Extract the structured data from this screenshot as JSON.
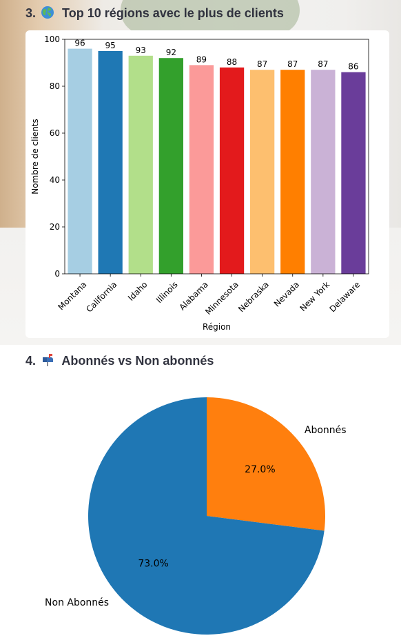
{
  "sections": {
    "bar_title_number": "3.",
    "bar_title_text": "Top 10 régions avec le plus de clients",
    "bar_title_icon": "globe-icon",
    "pie_title_number": "4.",
    "pie_title_text": "Abonnés vs Non abonnés",
    "pie_title_icon": "mailbox-icon"
  },
  "chart_data": [
    {
      "type": "bar",
      "title": "",
      "xlabel": "Région",
      "ylabel": "Nombre de clients",
      "ylim": [
        0,
        100
      ],
      "yticks": [
        "0",
        "20",
        "40",
        "60",
        "80",
        "100"
      ],
      "grid": false,
      "categories": [
        "Montana",
        "California",
        "Idaho",
        "Illinois",
        "Alabama",
        "Minnesota",
        "Nebraska",
        "Nevada",
        "New York",
        "Delaware"
      ],
      "values": [
        96,
        95,
        93,
        92,
        89,
        88,
        87,
        87,
        87,
        86
      ],
      "data_labels": [
        "96",
        "95",
        "93",
        "92",
        "89",
        "88",
        "87",
        "87",
        "87",
        "86"
      ],
      "colors": [
        "#a6cee3",
        "#1f78b4",
        "#b2df8a",
        "#33a02c",
        "#fb9a99",
        "#e31a1c",
        "#fdbf6f",
        "#ff7f00",
        "#cab2d6",
        "#6a3d9a"
      ]
    },
    {
      "type": "pie",
      "title": "",
      "labels": [
        "Abonnés",
        "Non Abonnés"
      ],
      "values": [
        27.0,
        73.0
      ],
      "pct_labels": [
        "27.0%",
        "73.0%"
      ],
      "colors": [
        "#ff7f0e",
        "#1f77b4"
      ],
      "start_angle_deg": 90,
      "direction": "clockwise"
    }
  ]
}
